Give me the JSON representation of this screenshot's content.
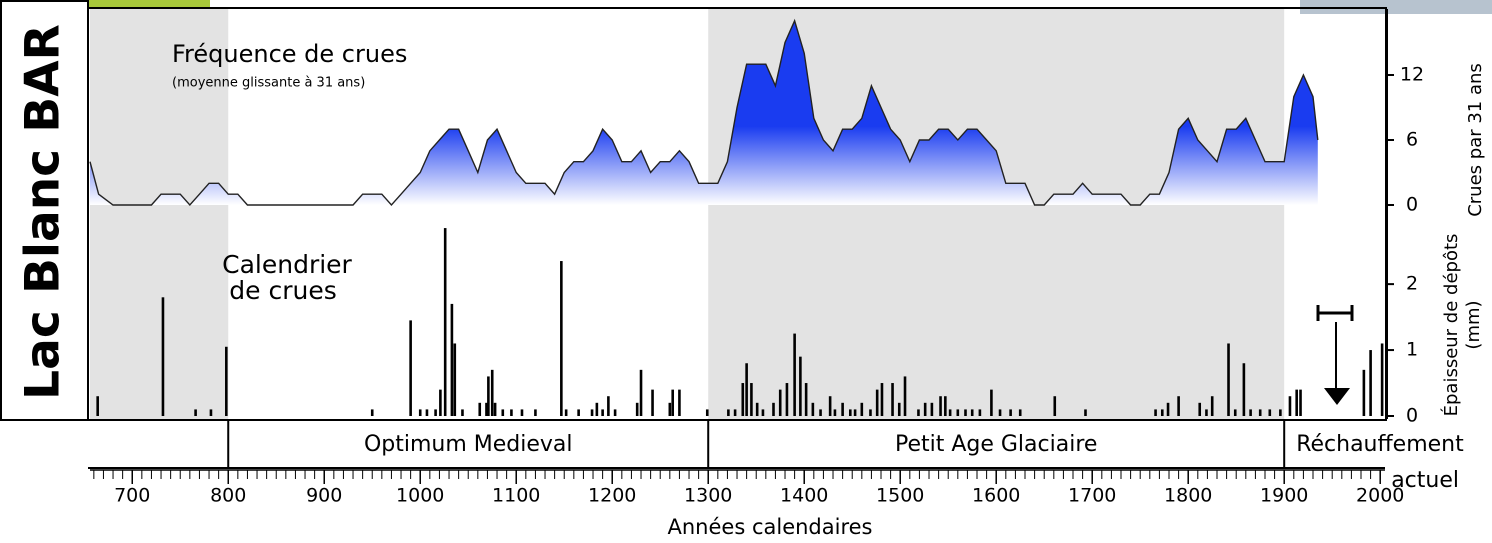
{
  "site_label": "Lac Blanc BAR",
  "shading": [
    [
      656,
      800
    ],
    [
      1300,
      1900
    ]
  ],
  "periods": [
    {
      "label": [
        "Optimum Medieval"
      ],
      "start": 800
    },
    {
      "label": [
        "Petit Age Glaciaire"
      ],
      "start": 1300
    },
    {
      "label": [
        "Réchauffement",
        "actuel"
      ],
      "start": 1900
    }
  ],
  "chart_data": [
    {
      "type": "area",
      "title": "Fréquence de crues",
      "subtitle": "(moyenne glissante à 31 ans)",
      "y_label": "Crues par 31 ans",
      "color": "#1a3cf0",
      "xlim": [
        656,
        2005
      ],
      "ylim": [
        0,
        18
      ],
      "yticks": [
        0,
        6,
        12
      ],
      "x": [
        656,
        665,
        680,
        700,
        710,
        720,
        730,
        740,
        750,
        760,
        770,
        780,
        790,
        800,
        810,
        820,
        830,
        840,
        850,
        860,
        870,
        880,
        890,
        900,
        910,
        920,
        930,
        940,
        950,
        960,
        970,
        980,
        990,
        1000,
        1010,
        1020,
        1030,
        1040,
        1050,
        1060,
        1070,
        1080,
        1090,
        1100,
        1110,
        1120,
        1130,
        1140,
        1150,
        1160,
        1170,
        1180,
        1190,
        1200,
        1210,
        1220,
        1230,
        1240,
        1250,
        1260,
        1270,
        1280,
        1290,
        1300,
        1310,
        1320,
        1330,
        1340,
        1350,
        1360,
        1370,
        1380,
        1390,
        1400,
        1410,
        1420,
        1430,
        1440,
        1450,
        1460,
        1470,
        1480,
        1490,
        1500,
        1510,
        1520,
        1530,
        1540,
        1550,
        1560,
        1570,
        1580,
        1590,
        1600,
        1610,
        1620,
        1630,
        1640,
        1650,
        1660,
        1670,
        1680,
        1690,
        1700,
        1710,
        1720,
        1730,
        1740,
        1750,
        1760,
        1770,
        1780,
        1790,
        1800,
        1810,
        1820,
        1830,
        1840,
        1850,
        1860,
        1870,
        1880,
        1890,
        1900,
        1910,
        1920,
        1930,
        1935
      ],
      "values": [
        4,
        1,
        0,
        0,
        0,
        0,
        1,
        1,
        1,
        0,
        1,
        2,
        2,
        1,
        1,
        0,
        0,
        0,
        0,
        0,
        0,
        0,
        0,
        0,
        0,
        0,
        0,
        1,
        1,
        1,
        0,
        1,
        2,
        3,
        5,
        6,
        7,
        7,
        5,
        3,
        6,
        7,
        5,
        3,
        2,
        2,
        2,
        1,
        3,
        4,
        4,
        5,
        7,
        6,
        4,
        4,
        5,
        3,
        4,
        4,
        5,
        4,
        2,
        2,
        2,
        4,
        9,
        13,
        13,
        13,
        11,
        15,
        17,
        14,
        8,
        6,
        5,
        7,
        7,
        8,
        11,
        9,
        7,
        6,
        4,
        6,
        6,
        7,
        7,
        6,
        7,
        7,
        6,
        5,
        2,
        2,
        2,
        0,
        0,
        1,
        1,
        1,
        2,
        1,
        1,
        1,
        1,
        0,
        0,
        1,
        1,
        3,
        7,
        8,
        6,
        5,
        4,
        7,
        7,
        8,
        6,
        4,
        4,
        4,
        10,
        12,
        10,
        6
      ]
    },
    {
      "type": "bar",
      "title": [
        "Calendrier",
        "de crues"
      ],
      "y_label": [
        "Épaisseur de dépôts",
        "(mm)"
      ],
      "x_label": "Années calendaires",
      "color": "#000000",
      "xlim": [
        656,
        2005
      ],
      "xticks": [
        700,
        800,
        900,
        1000,
        1100,
        1200,
        1300,
        1400,
        1500,
        1600,
        1700,
        1800,
        1900,
        2000
      ],
      "ylim": [
        0,
        3.2
      ],
      "yticks": [
        0,
        1,
        2
      ],
      "x": [
        664,
        732,
        766,
        782,
        798,
        950,
        990,
        1000,
        1007,
        1016,
        1021,
        1026,
        1033,
        1036,
        1044,
        1062,
        1069,
        1071,
        1075,
        1078,
        1086,
        1095,
        1106,
        1120,
        1147,
        1152,
        1165,
        1179,
        1184,
        1190,
        1196,
        1203,
        1226,
        1230,
        1242,
        1260,
        1263,
        1270,
        1299,
        1321,
        1328,
        1336,
        1340,
        1345,
        1351,
        1357,
        1368,
        1375,
        1382,
        1390,
        1396,
        1402,
        1409,
        1417,
        1427,
        1432,
        1440,
        1448,
        1453,
        1460,
        1469,
        1476,
        1481,
        1492,
        1499,
        1505,
        1519,
        1526,
        1533,
        1542,
        1547,
        1552,
        1560,
        1568,
        1575,
        1583,
        1595,
        1604,
        1615,
        1625,
        1661,
        1693,
        1766,
        1773,
        1779,
        1790,
        1812,
        1819,
        1825,
        1842,
        1849,
        1858,
        1865,
        1875,
        1885,
        1896,
        1906,
        1913,
        1917,
        1983,
        1990,
        2002
      ],
      "values": [
        0.3,
        1.8,
        0.1,
        0.1,
        1.05,
        0.1,
        1.45,
        0.1,
        0.1,
        0.1,
        0.4,
        2.85,
        1.7,
        1.1,
        0.1,
        0.2,
        0.2,
        0.6,
        0.7,
        0.2,
        0.1,
        0.1,
        0.1,
        0.1,
        2.35,
        0.1,
        0.1,
        0.1,
        0.2,
        0.1,
        0.3,
        0.1,
        0.2,
        0.7,
        0.4,
        0.2,
        0.4,
        0.4,
        0.1,
        0.1,
        0.1,
        0.5,
        0.8,
        0.5,
        0.2,
        0.1,
        0.2,
        0.4,
        0.5,
        1.25,
        0.9,
        0.5,
        0.2,
        0.1,
        0.3,
        0.1,
        0.2,
        0.1,
        0.1,
        0.2,
        0.1,
        0.4,
        0.5,
        0.5,
        0.2,
        0.6,
        0.1,
        0.2,
        0.2,
        0.3,
        0.3,
        0.1,
        0.1,
        0.1,
        0.1,
        0.1,
        0.4,
        0.1,
        0.1,
        0.1,
        0.3,
        0.1,
        0.1,
        0.1,
        0.2,
        0.3,
        0.2,
        0.1,
        0.3,
        1.1,
        0.1,
        0.8,
        0.1,
        0.1,
        0.1,
        0.1,
        0.3,
        0.4,
        0.4,
        0.7,
        1,
        1.1
      ]
    }
  ]
}
